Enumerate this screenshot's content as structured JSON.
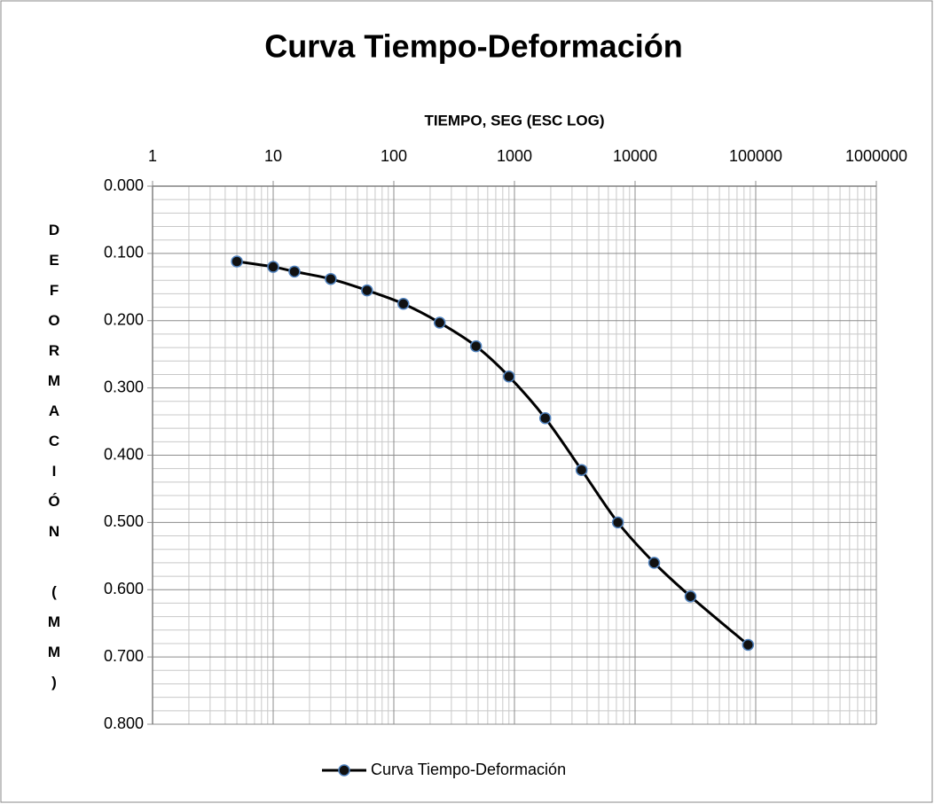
{
  "chart_data": {
    "type": "line",
    "title": "Curva Tiempo-Deformación",
    "x_label": "TIEMPO, SEG (ESC LOG)",
    "y_label": "DEFORMACIÓN (MM)",
    "x": [
      5,
      10,
      15,
      30,
      60,
      120,
      240,
      480,
      900,
      1800,
      3600,
      7200,
      14400,
      28800,
      86400
    ],
    "series": [
      {
        "name": "Curva Tiempo-Deformación",
        "color": "#000000",
        "values": [
          0.112,
          0.12,
          0.127,
          0.138,
          0.155,
          0.175,
          0.203,
          0.238,
          0.283,
          0.345,
          0.422,
          0.5,
          0.56,
          0.61,
          0.682
        ]
      }
    ],
    "xlim": [
      1,
      1000000
    ],
    "xticks": [
      1,
      10,
      100,
      1000,
      10000,
      100000,
      1000000
    ],
    "x_log": true,
    "ylim": [
      0,
      0.8
    ],
    "y_reversed": true,
    "yticks": [
      {
        "value": 0,
        "label": "0.000"
      },
      {
        "value": 0.1,
        "label": "0.100"
      },
      {
        "value": 0.2,
        "label": "0.200"
      },
      {
        "value": 0.3,
        "label": "0.300"
      },
      {
        "value": 0.4,
        "label": "0.400"
      },
      {
        "value": 0.5,
        "label": "0.500"
      },
      {
        "value": 0.6,
        "label": "0.600"
      },
      {
        "value": 0.7,
        "label": "0.700"
      },
      {
        "value": 0.8,
        "label": "0.800"
      }
    ],
    "grid": true,
    "legend": "bottom"
  }
}
